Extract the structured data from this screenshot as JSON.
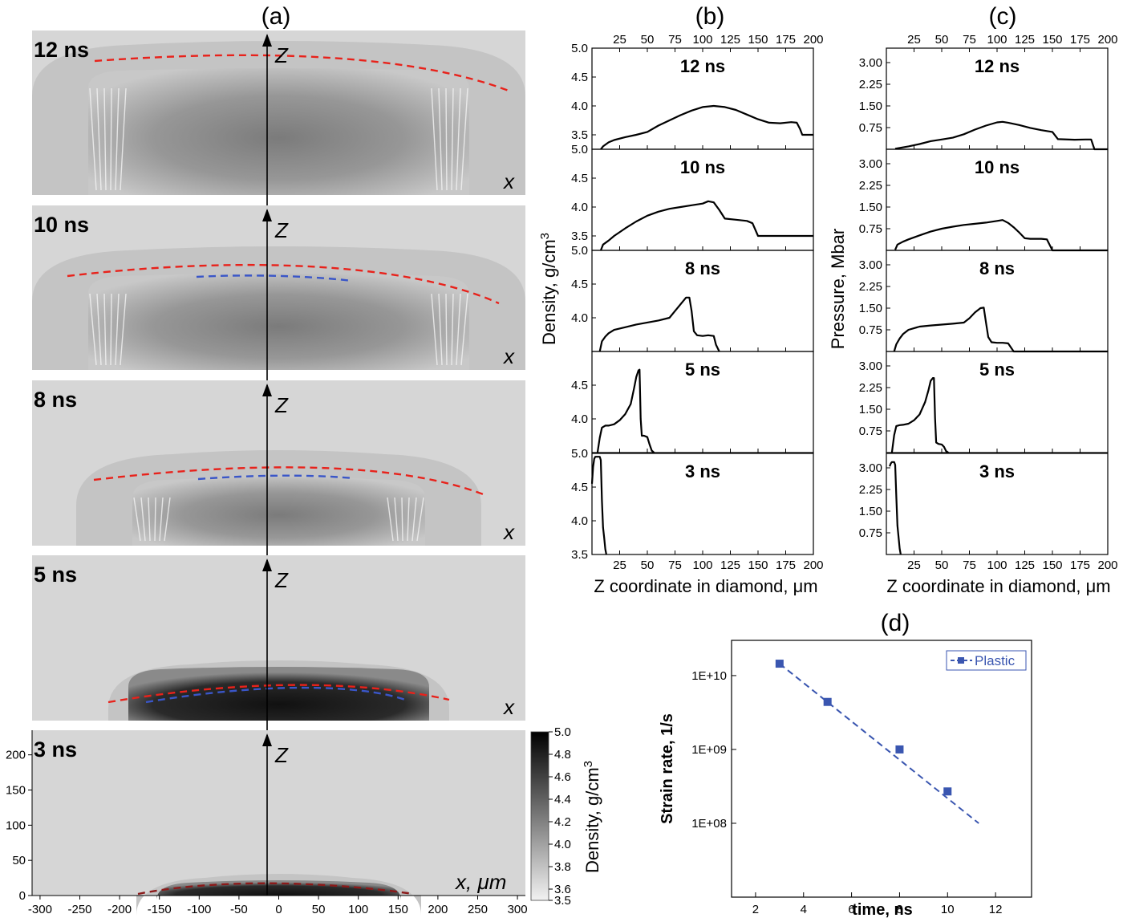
{
  "figure": {
    "panel_labels": [
      "(a)",
      "(b)",
      "(c)",
      "(d)"
    ]
  },
  "chart_data": [
    {
      "panel": "(a)",
      "type": "heatmap",
      "frames": [
        {
          "label": "12 ns",
          "axis_z": "Z",
          "axis_x": "x",
          "red_front": true,
          "blue_front": false
        },
        {
          "label": "10 ns",
          "axis_z": "Z",
          "axis_x": "x",
          "red_front": true,
          "blue_front": true
        },
        {
          "label": "8 ns",
          "axis_z": "Z",
          "axis_x": "x",
          "red_front": true,
          "blue_front": true
        },
        {
          "label": "5 ns",
          "axis_z": "Z",
          "axis_x": "x",
          "red_front": true,
          "blue_front": true
        },
        {
          "label": "3 ns",
          "axis_z": "Z",
          "axis_x": "x, μm",
          "red_front": true,
          "blue_front": false
        }
      ],
      "x_ticks": [
        "-300",
        "-250",
        "-200",
        "-150",
        "-100",
        "-50",
        "0",
        "50",
        "100",
        "150",
        "200",
        "250",
        "300"
      ],
      "xlim": [
        -310,
        310
      ],
      "y_ticks": [
        "0",
        "50",
        "100",
        "150",
        "200"
      ],
      "ylim": [
        0,
        235
      ],
      "colorbar": {
        "label": "Density, g/cm",
        "label_sup": "3",
        "ticks": [
          "5.0",
          "4.8",
          "4.6",
          "4.4",
          "4.2",
          "4.0",
          "3.8",
          "3.6",
          "3.5"
        ],
        "range": [
          3.5,
          5.0
        ],
        "colors": [
          "#f2f2f2",
          "#000000"
        ]
      },
      "colors": {
        "red_front": "#e8221b",
        "blue_front": "#3a56c8",
        "dark_red_front": "#8b1a1a"
      }
    },
    {
      "panel": "(b)",
      "type": "line",
      "xlabel": "Z coordinate in diamond, μm",
      "ylabel": "Density, g/cm",
      "ylabel_sup": "3",
      "x_ticks": [
        "25",
        "50",
        "75",
        "100",
        "125",
        "150",
        "175",
        "200"
      ],
      "xlim": [
        0,
        200
      ],
      "subplots": [
        {
          "label": "12 ns",
          "ylim": [
            3.25,
            5.0
          ],
          "y_ticks": [
            "5.0",
            "4.5",
            "4.0",
            "3.5"
          ],
          "x": [
            8,
            10,
            15,
            20,
            30,
            40,
            50,
            60,
            70,
            80,
            90,
            100,
            110,
            120,
            130,
            140,
            150,
            160,
            170,
            180,
            185,
            188,
            190,
            200
          ],
          "values": [
            3.23,
            3.3,
            3.37,
            3.41,
            3.46,
            3.5,
            3.55,
            3.66,
            3.75,
            3.84,
            3.92,
            3.98,
            4.0,
            3.98,
            3.93,
            3.85,
            3.77,
            3.71,
            3.7,
            3.72,
            3.71,
            3.6,
            3.5,
            3.5
          ]
        },
        {
          "label": "10 ns",
          "ylim": [
            3.25,
            5.0
          ],
          "y_ticks": [
            "5.0",
            "4.5",
            "4.0",
            "3.5"
          ],
          "x": [
            8,
            10,
            15,
            20,
            30,
            40,
            50,
            60,
            70,
            80,
            90,
            100,
            105,
            110,
            115,
            120,
            130,
            140,
            145,
            150,
            160,
            170,
            180,
            190,
            200
          ],
          "values": [
            3.23,
            3.35,
            3.42,
            3.5,
            3.63,
            3.75,
            3.85,
            3.92,
            3.97,
            4.0,
            4.03,
            4.06,
            4.1,
            4.08,
            3.95,
            3.8,
            3.78,
            3.76,
            3.72,
            3.5,
            3.5,
            3.5,
            3.5,
            3.5,
            3.5
          ]
        },
        {
          "label": "8 ns",
          "ylim": [
            3.5,
            5.0
          ],
          "y_ticks": [
            "5.0",
            "4.5",
            "4.0"
          ],
          "x": [
            7,
            9,
            12,
            15,
            20,
            30,
            40,
            50,
            60,
            70,
            75,
            80,
            85,
            88,
            90,
            92,
            95,
            100,
            105,
            110,
            112,
            115
          ],
          "values": [
            3.5,
            3.65,
            3.72,
            3.77,
            3.82,
            3.86,
            3.9,
            3.93,
            3.96,
            4.0,
            4.1,
            4.2,
            4.3,
            4.3,
            4.1,
            3.8,
            3.74,
            3.73,
            3.74,
            3.73,
            3.6,
            3.5
          ]
        },
        {
          "label": "5 ns",
          "ylim": [
            3.5,
            5.0
          ],
          "y_ticks": [
            "4.5",
            "4.0"
          ],
          "x": [
            5,
            7,
            9,
            12,
            15,
            20,
            25,
            30,
            35,
            38,
            40,
            42,
            43,
            44,
            45,
            47,
            50,
            52,
            54,
            56
          ],
          "values": [
            3.5,
            3.72,
            3.87,
            3.9,
            3.9,
            3.92,
            3.98,
            4.07,
            4.22,
            4.45,
            4.62,
            4.72,
            4.73,
            4.0,
            3.75,
            3.75,
            3.73,
            3.62,
            3.53,
            3.5
          ]
        },
        {
          "label": "3 ns",
          "ylim": [
            3.5,
            5.0
          ],
          "y_ticks": [
            "5.0",
            "4.5",
            "4.0",
            "3.5"
          ],
          "x": [
            0,
            1,
            2,
            3,
            5,
            7,
            8,
            9,
            10,
            11,
            12,
            13
          ],
          "values": [
            4.55,
            4.8,
            4.92,
            4.95,
            4.95,
            4.95,
            4.9,
            4.3,
            3.9,
            3.75,
            3.58,
            3.5
          ]
        }
      ]
    },
    {
      "panel": "(c)",
      "type": "line",
      "xlabel": "Z coordinate in diamond, μm",
      "ylabel": "Pressure, Mbar",
      "x_ticks": [
        "25",
        "50",
        "75",
        "100",
        "125",
        "150",
        "175",
        "200"
      ],
      "xlim": [
        0,
        200
      ],
      "y_ticks": [
        "3.00",
        "2.25",
        "1.50",
        "0.75"
      ],
      "ylim": [
        0,
        3.5
      ],
      "subplots": [
        {
          "label": "12 ns",
          "x": [
            8,
            20,
            30,
            40,
            50,
            60,
            70,
            80,
            90,
            100,
            105,
            110,
            120,
            130,
            140,
            150,
            155,
            170,
            180,
            185,
            188,
            200
          ],
          "values": [
            0.02,
            0.1,
            0.18,
            0.28,
            0.34,
            0.4,
            0.52,
            0.68,
            0.82,
            0.93,
            0.95,
            0.92,
            0.84,
            0.74,
            0.66,
            0.6,
            0.35,
            0.33,
            0.34,
            0.34,
            0.0,
            0.0
          ]
        },
        {
          "label": "10 ns",
          "x": [
            8,
            10,
            15,
            20,
            30,
            40,
            50,
            60,
            70,
            80,
            90,
            100,
            105,
            110,
            115,
            120,
            125,
            130,
            140,
            145,
            150,
            200
          ],
          "values": [
            0.02,
            0.2,
            0.3,
            0.38,
            0.52,
            0.65,
            0.75,
            0.82,
            0.88,
            0.92,
            0.96,
            1.02,
            1.05,
            0.95,
            0.8,
            0.62,
            0.42,
            0.4,
            0.4,
            0.38,
            0.0,
            0.0
          ]
        },
        {
          "label": "8 ns",
          "x": [
            7,
            9,
            12,
            15,
            20,
            30,
            40,
            50,
            60,
            70,
            75,
            80,
            85,
            88,
            90,
            92,
            95,
            100,
            105,
            110,
            115,
            200
          ],
          "values": [
            0.0,
            0.25,
            0.45,
            0.6,
            0.75,
            0.86,
            0.9,
            0.93,
            0.96,
            1.0,
            1.15,
            1.35,
            1.5,
            1.52,
            1.0,
            0.5,
            0.32,
            0.3,
            0.3,
            0.28,
            0.0,
            0.0
          ]
        },
        {
          "label": "5 ns",
          "x": [
            5,
            7,
            9,
            12,
            15,
            20,
            25,
            30,
            35,
            38,
            40,
            42,
            43,
            44,
            45,
            47,
            50,
            52,
            54,
            56
          ],
          "values": [
            0.0,
            0.6,
            0.92,
            0.95,
            0.96,
            1.0,
            1.12,
            1.32,
            1.75,
            2.15,
            2.48,
            2.58,
            2.58,
            1.2,
            0.35,
            0.3,
            0.28,
            0.2,
            0.05,
            0.0
          ]
        },
        {
          "label": "3 ns",
          "x": [
            3,
            4,
            5,
            7,
            8,
            9,
            10,
            11,
            12,
            13
          ],
          "values": [
            3.05,
            3.15,
            3.2,
            3.2,
            3.1,
            2.0,
            1.0,
            0.6,
            0.2,
            0.0
          ]
        }
      ]
    },
    {
      "panel": "(d)",
      "type": "scatter",
      "xlabel": "time, ns",
      "ylabel": "Strain rate, 1/s",
      "x_ticks": [
        "2",
        "4",
        "6",
        "8",
        "10",
        "12"
      ],
      "xlim": [
        1,
        13.5
      ],
      "y_ticks": [
        "1E+10",
        "1E+09",
        "1E+08"
      ],
      "y_scale": "log",
      "ylim": [
        10000000.0,
        30000000000.0
      ],
      "legend_placement": "top-right",
      "series": [
        {
          "name": "Plastic",
          "color": "#3a56b0",
          "x": [
            3,
            5,
            8,
            10
          ],
          "values": [
            14500000000.0,
            4400000000.0,
            1000000000.0,
            270000000.0
          ],
          "fit_line": {
            "x": [
              3,
              11.3
            ],
            "values": [
              14500000000.0,
              100000000.0
            ]
          }
        }
      ]
    }
  ]
}
